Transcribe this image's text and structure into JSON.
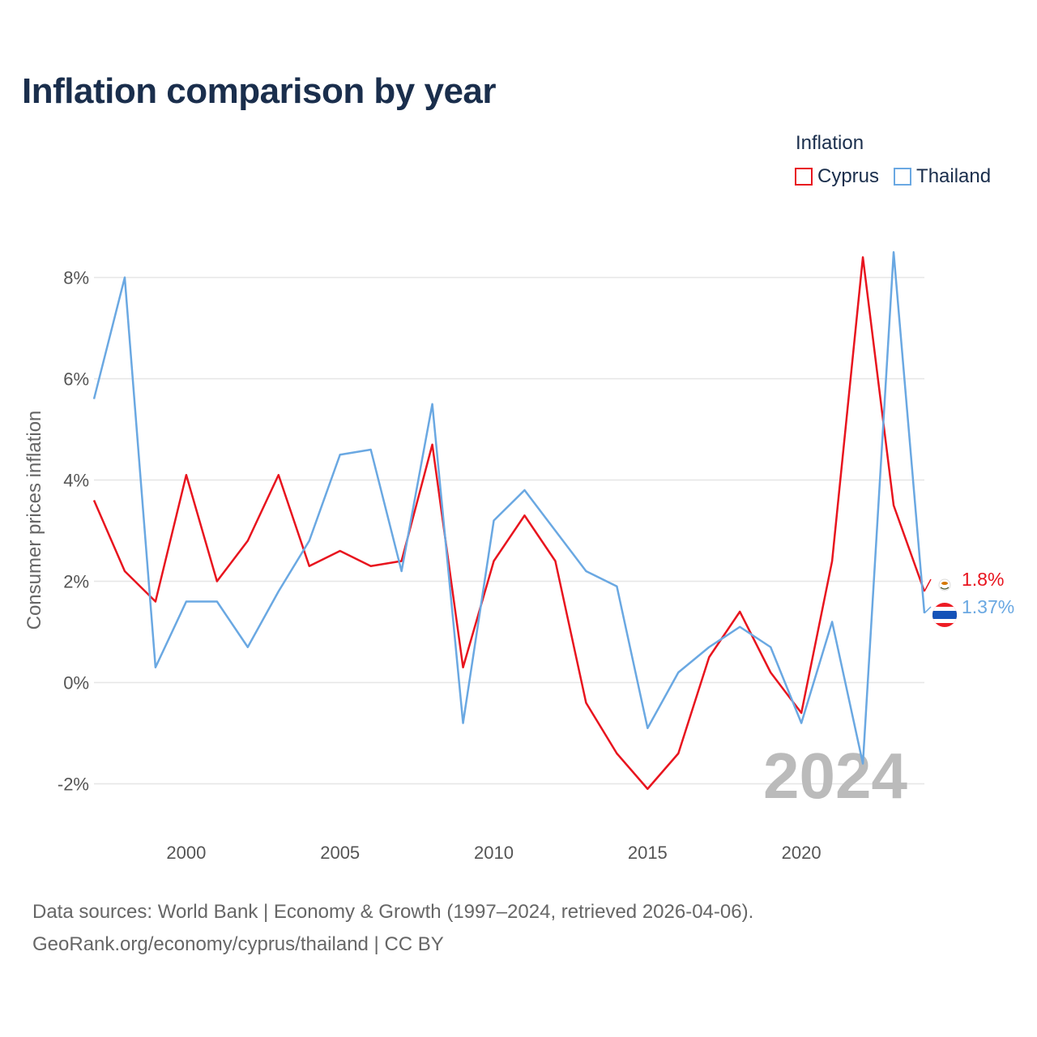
{
  "title": "Inflation comparison by year",
  "legend": {
    "title": "Inflation",
    "items": [
      {
        "label": "Cyprus",
        "color": "#e8141e"
      },
      {
        "label": "Thailand",
        "color": "#6aa8e2"
      }
    ]
  },
  "current_year": "2024",
  "source": {
    "line1": "Data sources: World Bank | Economy & Growth (1997–2024, retrieved 2026-04-06).",
    "line2": "GeoRank.org/economy/cyprus/thailand | CC BY"
  },
  "chart_data": {
    "type": "line",
    "title": "Inflation comparison by year",
    "xlabel": "",
    "ylabel": "Consumer prices inflation",
    "x": [
      1997,
      1998,
      1999,
      2000,
      2001,
      2002,
      2003,
      2004,
      2005,
      2006,
      2007,
      2008,
      2009,
      2010,
      2011,
      2012,
      2013,
      2014,
      2015,
      2016,
      2017,
      2018,
      2019,
      2020,
      2021,
      2022,
      2023,
      2024
    ],
    "xlim": [
      1997,
      2024
    ],
    "ylim": [
      -3.0,
      9.0
    ],
    "x_ticks": [
      {
        "value": 2000,
        "label": "2000"
      },
      {
        "value": 2005,
        "label": "2005"
      },
      {
        "value": 2010,
        "label": "2010"
      },
      {
        "value": 2015,
        "label": "2015"
      },
      {
        "value": 2020,
        "label": "2020"
      }
    ],
    "y_ticks": [
      {
        "value": -2,
        "label": "-2%"
      },
      {
        "value": 0,
        "label": "0%"
      },
      {
        "value": 2,
        "label": "2%"
      },
      {
        "value": 4,
        "label": "4%"
      },
      {
        "value": 6,
        "label": "6%"
      },
      {
        "value": 8,
        "label": "8%"
      }
    ],
    "grid": true,
    "series": [
      {
        "name": "Cyprus",
        "color": "#e8141e",
        "end_label": "1.8%",
        "values": [
          3.6,
          2.2,
          1.6,
          4.1,
          2.0,
          2.8,
          4.1,
          2.3,
          2.6,
          2.3,
          2.4,
          4.7,
          0.3,
          2.4,
          3.3,
          2.4,
          -0.4,
          -1.4,
          -2.1,
          -1.4,
          0.5,
          1.4,
          0.2,
          -0.6,
          2.4,
          8.4,
          3.5,
          1.8
        ]
      },
      {
        "name": "Thailand",
        "color": "#6aa8e2",
        "end_label": "1.37%",
        "values": [
          5.6,
          8.0,
          0.3,
          1.6,
          1.6,
          0.7,
          1.8,
          2.8,
          4.5,
          4.6,
          2.2,
          5.5,
          -0.8,
          3.2,
          3.8,
          3.0,
          2.2,
          1.9,
          -0.9,
          0.2,
          0.7,
          1.1,
          0.7,
          -0.8,
          1.2,
          -1.6,
          8.5,
          1.37
        ]
      }
    ]
  }
}
